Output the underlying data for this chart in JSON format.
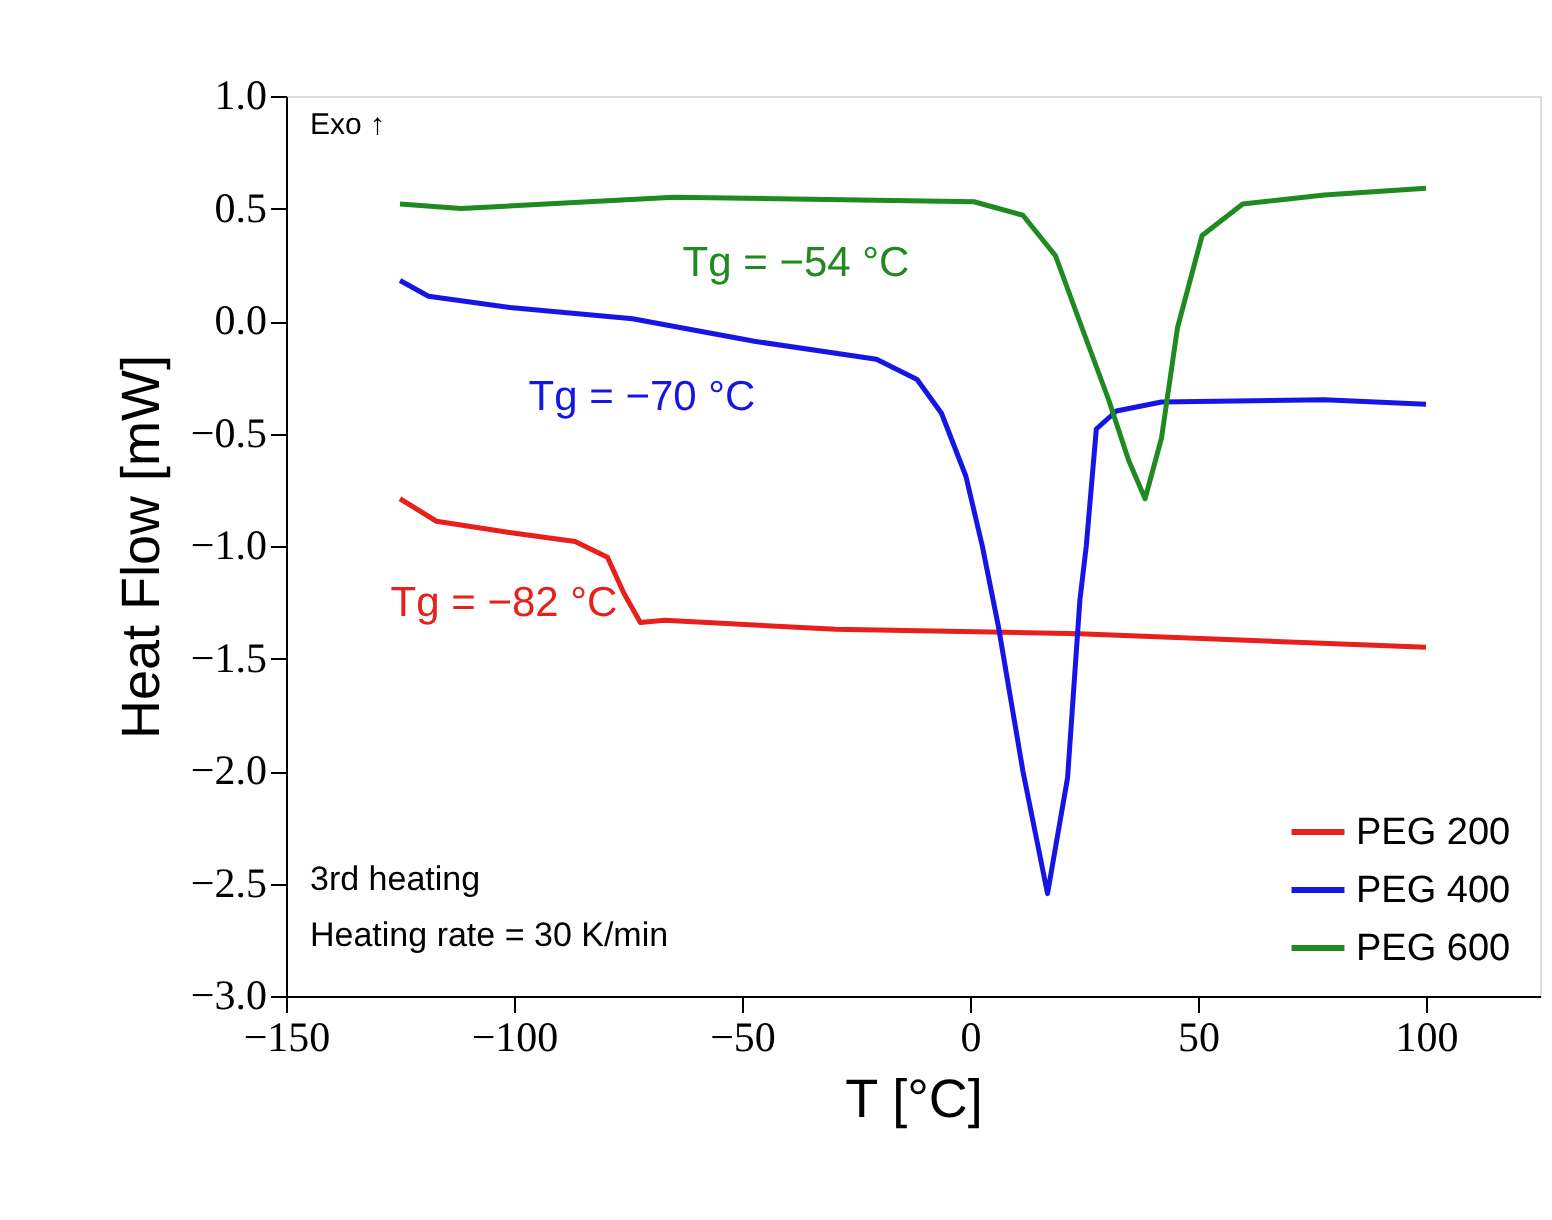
{
  "chart_data": {
    "type": "line",
    "xlabel": "T [°C]",
    "ylabel": "Heat Flow [mW]",
    "xlim": [
      -150,
      125
    ],
    "xticks": [
      {
        "value": -150,
        "label": "−150"
      },
      {
        "value": -100,
        "label": "−100"
      },
      {
        "value": -50,
        "label": "−50"
      },
      {
        "value": 0,
        "label": "0"
      },
      {
        "value": 50,
        "label": "50"
      },
      {
        "value": 100,
        "label": "100"
      }
    ],
    "ylim": [
      -3.0,
      1.0
    ],
    "yticks": [
      {
        "value": -3.0,
        "label": "−3.0"
      },
      {
        "value": -2.5,
        "label": "−2.5"
      },
      {
        "value": -2.0,
        "label": "−2.0"
      },
      {
        "value": -1.5,
        "label": "−1.5"
      },
      {
        "value": -1.0,
        "label": "−1.0"
      },
      {
        "value": -0.5,
        "label": "−0.5"
      },
      {
        "value": 0.0,
        "label": "0.0"
      },
      {
        "value": 0.5,
        "label": "0.5"
      },
      {
        "value": 1.0,
        "label": "1.0"
      }
    ],
    "grid": false,
    "legend": "bottom right",
    "marker": "none",
    "line_style": "solid",
    "series": [
      {
        "name": "PEG 200",
        "color": "#e8201c",
        "x": [
          -125,
          -117,
          -101,
          -86.6,
          -79.5,
          -75.9,
          -72.3,
          -67,
          -29.5,
          24,
          100
        ],
        "values": [
          -0.79,
          -0.89,
          -0.94,
          -0.98,
          -1.05,
          -1.21,
          -1.34,
          -1.33,
          -1.37,
          -1.39,
          -1.45
        ]
      },
      {
        "name": "PEG 400",
        "color": "#1515e6",
        "x": [
          -125,
          -118.75,
          -100.9,
          -74,
          -47.3,
          -20.5,
          -11.6,
          -6.25,
          -0.9,
          2.7,
          6.25,
          11.6,
          17,
          21.4,
          24.1,
          25.5,
          27.7,
          32.1,
          42,
          77.7,
          100
        ],
        "values": [
          0.18,
          0.11,
          0.06,
          0.01,
          -0.09,
          -0.17,
          -0.26,
          -0.41,
          -0.69,
          -1.0,
          -1.36,
          -2.0,
          -2.545,
          -2.03,
          -1.24,
          -1.0,
          -0.48,
          -0.4,
          -0.36,
          -0.35,
          -0.37
        ]
      },
      {
        "name": "PEG 600",
        "color": "#1f8a1f",
        "x": [
          -125,
          -111.6,
          -65,
          0.9,
          11.6,
          18.75,
          24,
          30.4,
          34.8,
          38.4,
          42,
          45.5,
          50.9,
          59.8,
          77.7,
          100
        ],
        "values": [
          0.52,
          0.5,
          0.55,
          0.53,
          0.47,
          0.29,
          0.0,
          -0.35,
          -0.62,
          -0.79,
          -0.52,
          -0.03,
          0.38,
          0.52,
          0.56,
          0.59
        ]
      }
    ],
    "annotations": [
      "Tg = −54 °C",
      "Tg = −70 °C",
      "Tg = −82 °C",
      "Exo ↑",
      "3rd heating",
      "Heating rate = 30 K/min"
    ]
  }
}
